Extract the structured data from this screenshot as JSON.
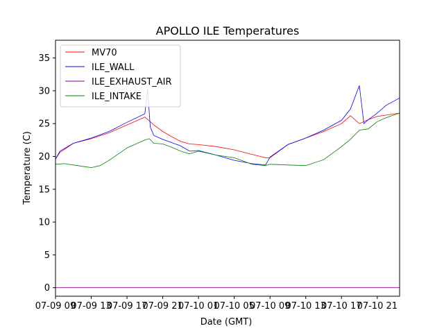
{
  "chart_data": {
    "type": "line",
    "title": "APOLLO ILE Temperatures",
    "xlabel": "Date (GMT)",
    "ylabel": "Temperature (C)",
    "xlim": [
      0,
      38.5
    ],
    "ylim": [
      -1.3,
      37.7
    ],
    "x_ticks": [
      {
        "x": 0,
        "label": "07-09 09"
      },
      {
        "x": 4,
        "label": "07-09 13"
      },
      {
        "x": 8,
        "label": "07-09 17"
      },
      {
        "x": 12,
        "label": "07-09 21"
      },
      {
        "x": 16,
        "label": "07-10 01"
      },
      {
        "x": 20,
        "label": "07-10 05"
      },
      {
        "x": 24,
        "label": "07-10 09"
      },
      {
        "x": 28,
        "label": "07-10 13"
      },
      {
        "x": 32,
        "label": "07-10 17"
      },
      {
        "x": 36,
        "label": "07-10 21"
      }
    ],
    "y_ticks": [
      0,
      5,
      10,
      15,
      20,
      25,
      30,
      35
    ],
    "legend": {
      "position": "top-left",
      "entries": [
        "MV70",
        "ILE_WALL",
        "ILE_EXHAUST_AIR",
        "ILE_INTAKE"
      ]
    },
    "series": [
      {
        "name": "MV70",
        "color": "#ff0000",
        "x": [
          0,
          0.5,
          2,
          4,
          6,
          8,
          10,
          11,
          12,
          13,
          14,
          15,
          16,
          18,
          20,
          22,
          23.5,
          24,
          26,
          28,
          30,
          32,
          33,
          34,
          35,
          36,
          37,
          38.5
        ],
        "y": [
          19.6,
          20.6,
          22.0,
          22.7,
          23.6,
          24.8,
          26.0,
          24.8,
          23.8,
          23.0,
          22.3,
          21.9,
          21.8,
          21.5,
          21.0,
          20.3,
          19.8,
          19.8,
          21.8,
          22.8,
          23.8,
          25.0,
          26.2,
          25.0,
          25.6,
          26.1,
          26.3,
          26.6
        ]
      },
      {
        "name": "ILE_WALL",
        "color": "#0000ff",
        "x": [
          0,
          0.5,
          2,
          4,
          6,
          8,
          10,
          10.3,
          10.6,
          11,
          12,
          13,
          14,
          15,
          16,
          18,
          20,
          22,
          23.5,
          24,
          26,
          28,
          30,
          32,
          33,
          34,
          34.5,
          35,
          36,
          37,
          38.5
        ],
        "y": [
          19.6,
          20.8,
          22.0,
          22.8,
          23.8,
          25.2,
          26.5,
          30.3,
          24.5,
          23.2,
          22.6,
          22.1,
          21.6,
          20.8,
          20.9,
          20.2,
          19.4,
          18.9,
          18.7,
          19.9,
          21.8,
          22.8,
          24.0,
          25.5,
          27.2,
          30.8,
          25.0,
          25.6,
          26.6,
          27.8,
          28.9
        ]
      },
      {
        "name": "ILE_EXHAUST_AIR",
        "color": "#800080",
        "x": [
          0,
          38.5
        ],
        "y": [
          0,
          0
        ]
      },
      {
        "name": "ILE_INTAKE",
        "color": "#008000",
        "x": [
          0,
          1,
          2,
          3,
          4,
          5,
          6,
          8,
          10,
          10.5,
          11,
          12,
          13,
          14,
          15,
          16,
          18,
          20,
          22,
          23.5,
          24,
          26,
          28,
          30,
          32,
          33,
          34,
          35,
          36,
          37,
          38.5
        ],
        "y": [
          18.8,
          18.9,
          18.7,
          18.5,
          18.3,
          18.6,
          19.4,
          21.3,
          22.5,
          22.7,
          22.0,
          21.9,
          21.4,
          20.8,
          20.4,
          20.8,
          20.2,
          19.8,
          18.8,
          18.6,
          18.8,
          18.7,
          18.6,
          19.5,
          21.5,
          22.6,
          24.0,
          24.2,
          25.3,
          25.9,
          26.6
        ]
      }
    ]
  }
}
